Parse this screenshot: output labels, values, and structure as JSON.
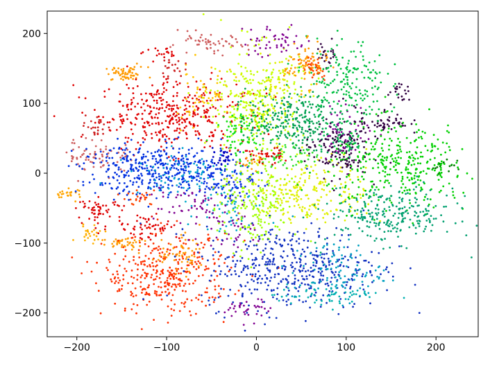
{
  "chart_data": {
    "type": "scatter",
    "title": "",
    "xlabel": "",
    "ylabel": "",
    "xlim": [
      -233,
      247
    ],
    "ylim": [
      -234,
      232
    ],
    "x_ticks": [
      -200,
      -100,
      0,
      100,
      200
    ],
    "y_ticks": [
      -200,
      -100,
      0,
      100,
      200
    ],
    "x_tick_labels": [
      "−200",
      "−100",
      "0",
      "100",
      "200"
    ],
    "y_tick_labels": [
      "−200",
      "−100",
      "0",
      "100",
      "200"
    ],
    "grid": false,
    "legend": "none",
    "marker": "dot",
    "colormap": "nipy_spectral",
    "clusters": [
      {
        "color": "#ff9a00",
        "cx": -145,
        "cy": 142,
        "sx": 12,
        "sy": 5,
        "n": 60
      },
      {
        "color": "#e00000",
        "cx": -95,
        "cy": 85,
        "sx": 40,
        "sy": 25,
        "n": 380
      },
      {
        "color": "#ffc400",
        "cx": -60,
        "cy": 110,
        "sx": 20,
        "sy": 20,
        "n": 60
      },
      {
        "color": "#cc2020",
        "cx": -180,
        "cy": 65,
        "sx": 6,
        "sy": 8,
        "n": 25
      },
      {
        "color": "#cd5c5c",
        "cx": -175,
        "cy": 25,
        "sx": 20,
        "sy": 12,
        "n": 70
      },
      {
        "color": "#e00000",
        "cx": -105,
        "cy": 170,
        "sx": 10,
        "sy": 4,
        "n": 20
      },
      {
        "color": "#cd5c5c",
        "cx": -55,
        "cy": 185,
        "sx": 22,
        "sy": 7,
        "n": 55
      },
      {
        "color": "#cc2020",
        "cx": -95,
        "cy": 150,
        "sx": 8,
        "sy": 6,
        "n": 20
      },
      {
        "color": "#ffa500",
        "cx": -210,
        "cy": -30,
        "sx": 8,
        "sy": 4,
        "n": 25
      },
      {
        "color": "#dd0000",
        "cx": -175,
        "cy": -52,
        "sx": 12,
        "sy": 8,
        "n": 50
      },
      {
        "color": "#ff4500",
        "cx": -130,
        "cy": -35,
        "sx": 10,
        "sy": 6,
        "n": 25
      },
      {
        "color": "#ffb000",
        "cx": -185,
        "cy": -85,
        "sx": 8,
        "sy": 6,
        "n": 25
      },
      {
        "color": "#ff9a00",
        "cx": -145,
        "cy": -100,
        "sx": 14,
        "sy": 5,
        "n": 40
      },
      {
        "color": "#e00000",
        "cx": -125,
        "cy": -75,
        "sx": 20,
        "sy": 10,
        "n": 60
      },
      {
        "color": "#ff3000",
        "cx": -100,
        "cy": -145,
        "sx": 35,
        "sy": 28,
        "n": 360
      },
      {
        "color": "#ff9a00",
        "cx": -85,
        "cy": -120,
        "sx": 18,
        "sy": 14,
        "n": 60
      },
      {
        "color": "#0030e0",
        "cx": -105,
        "cy": 5,
        "sx": 45,
        "sy": 18,
        "n": 420
      },
      {
        "color": "#00a0d0",
        "cx": -80,
        "cy": 0,
        "sx": 30,
        "sy": 15,
        "n": 80
      },
      {
        "color": "#0000c0",
        "cx": -40,
        "cy": 22,
        "sx": 8,
        "sy": 6,
        "n": 30
      },
      {
        "color": "#00a8c8",
        "cx": -30,
        "cy": -50,
        "sx": 18,
        "sy": 18,
        "n": 60
      },
      {
        "color": "#1030e0",
        "cx": -35,
        "cy": -15,
        "sx": 18,
        "sy": 12,
        "n": 60
      },
      {
        "color": "#800090",
        "cx": -80,
        "cy": -45,
        "sx": 25,
        "sy": 15,
        "n": 50
      },
      {
        "color": "#800090",
        "cx": -30,
        "cy": -80,
        "sx": 25,
        "sy": 15,
        "n": 40
      },
      {
        "color": "#800090",
        "cx": -10,
        "cy": -195,
        "sx": 12,
        "sy": 8,
        "n": 35
      },
      {
        "color": "#c8ff00",
        "cx": 0,
        "cy": 100,
        "sx": 25,
        "sy": 40,
        "n": 300
      },
      {
        "color": "#10e010",
        "cx": -15,
        "cy": 60,
        "sx": 15,
        "sy": 18,
        "n": 80
      },
      {
        "color": "#e0f000",
        "cx": 20,
        "cy": 120,
        "sx": 15,
        "sy": 20,
        "n": 60
      },
      {
        "color": "#00a050",
        "cx": 40,
        "cy": 75,
        "sx": 25,
        "sy": 20,
        "n": 260
      },
      {
        "color": "#e0f000",
        "cx": 55,
        "cy": -25,
        "sx": 35,
        "sy": 25,
        "n": 240
      },
      {
        "color": "#a0ff00",
        "cx": 0,
        "cy": -50,
        "sx": 20,
        "sy": 35,
        "n": 200
      },
      {
        "color": "#30e030",
        "cx": 30,
        "cy": 20,
        "sx": 20,
        "sy": 10,
        "n": 60
      },
      {
        "color": "#1030c0",
        "cx": 40,
        "cy": -135,
        "sx": 50,
        "sy": 30,
        "n": 450
      },
      {
        "color": "#00a0c0",
        "cx": 90,
        "cy": -140,
        "sx": 25,
        "sy": 22,
        "n": 100
      },
      {
        "color": "#00b0b0",
        "cx": 80,
        "cy": -175,
        "sx": 30,
        "sy": 8,
        "n": 60
      },
      {
        "color": "#300040",
        "cx": 90,
        "cy": 35,
        "sx": 18,
        "sy": 20,
        "n": 150
      },
      {
        "color": "#300040",
        "cx": 140,
        "cy": 75,
        "sx": 15,
        "sy": 10,
        "n": 60
      },
      {
        "color": "#300040",
        "cx": 160,
        "cy": 115,
        "sx": 6,
        "sy": 6,
        "n": 20
      },
      {
        "color": "#300040",
        "cx": 80,
        "cy": 170,
        "sx": 6,
        "sy": 10,
        "n": 25
      },
      {
        "color": "#800090",
        "cx": 100,
        "cy": 60,
        "sx": 15,
        "sy": 20,
        "n": 50
      },
      {
        "color": "#800090",
        "cx": 20,
        "cy": 190,
        "sx": 18,
        "sy": 12,
        "n": 50
      },
      {
        "color": "#00c040",
        "cx": 100,
        "cy": 130,
        "sx": 22,
        "sy": 30,
        "n": 180
      },
      {
        "color": "#00d000",
        "cx": 160,
        "cy": 10,
        "sx": 40,
        "sy": 30,
        "n": 350
      },
      {
        "color": "#00a070",
        "cx": 150,
        "cy": -60,
        "sx": 35,
        "sy": 20,
        "n": 250
      },
      {
        "color": "#00b050",
        "cx": 100,
        "cy": 45,
        "sx": 10,
        "sy": 12,
        "n": 40
      },
      {
        "color": "#ff9a00",
        "cx": 55,
        "cy": 155,
        "sx": 12,
        "sy": 15,
        "n": 80
      },
      {
        "color": "#ff4500",
        "cx": 65,
        "cy": 150,
        "sx": 8,
        "sy": 10,
        "n": 30
      },
      {
        "color": "#e00000",
        "cx": 5,
        "cy": 25,
        "sx": 12,
        "sy": 6,
        "n": 40
      },
      {
        "color": "#ff9a00",
        "cx": -5,
        "cy": 15,
        "sx": 8,
        "sy": 5,
        "n": 15
      },
      {
        "color": "#008000",
        "cx": 210,
        "cy": 10,
        "sx": 8,
        "sy": 6,
        "n": 15
      }
    ]
  }
}
